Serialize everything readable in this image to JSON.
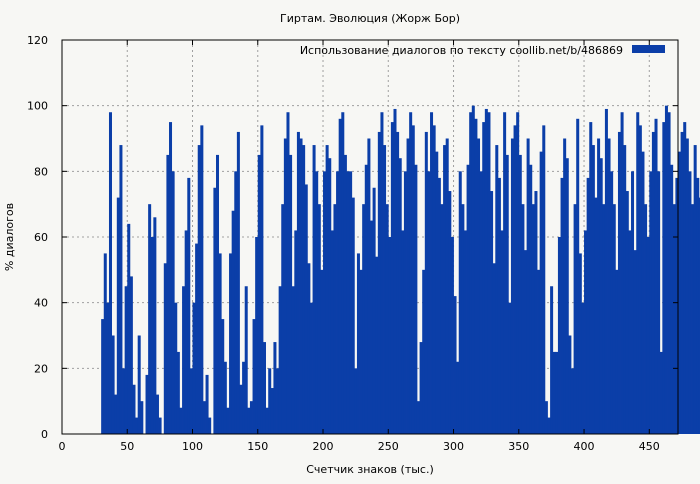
{
  "chart_data": {
    "type": "bar",
    "title": "Гиртам. Эволюция (Жорж Бор)",
    "xlabel": "Счетчик знаков (тыс.)",
    "ylabel": "% диалогов",
    "xlim": [
      0,
      472
    ],
    "ylim": [
      0,
      120
    ],
    "xticks": [
      "0",
      "50",
      "100",
      "150",
      "200",
      "250",
      "300",
      "350",
      "400",
      "450"
    ],
    "xtick_values": [
      0,
      50,
      100,
      150,
      200,
      250,
      300,
      350,
      400,
      450
    ],
    "yticks": [
      "0",
      "20",
      "40",
      "60",
      "80",
      "100",
      "120"
    ],
    "ytick_values": [
      0,
      20,
      40,
      60,
      80,
      100,
      120
    ],
    "grid": true,
    "legend_position": "top-right",
    "series": [
      {
        "name": "Использование диалогов по тексту  coollib.net/b/486869",
        "color": "#0b3ea8",
        "x_start": 30,
        "x_step": 2,
        "values": [
          35,
          55,
          40,
          98,
          30,
          12,
          72,
          88,
          20,
          45,
          64,
          48,
          15,
          5,
          30,
          10,
          0,
          18,
          70,
          60,
          66,
          12,
          5,
          0,
          52,
          85,
          95,
          80,
          40,
          25,
          8,
          45,
          62,
          78,
          20,
          40,
          58,
          88,
          94,
          10,
          18,
          5,
          0,
          75,
          85,
          55,
          35,
          22,
          8,
          55,
          68,
          80,
          92,
          15,
          22,
          45,
          8,
          10,
          35,
          60,
          85,
          94,
          28,
          8,
          20,
          14,
          28,
          20,
          45,
          70,
          90,
          98,
          85,
          45,
          62,
          92,
          90,
          88,
          76,
          52,
          40,
          88,
          80,
          70,
          50,
          80,
          88,
          84,
          62,
          70,
          80,
          96,
          98,
          85,
          80,
          80,
          72,
          20,
          55,
          50,
          70,
          82,
          90,
          65,
          75,
          54,
          92,
          98,
          88,
          70,
          60,
          95,
          99,
          92,
          84,
          62,
          80,
          90,
          98,
          94,
          82,
          10,
          28,
          50,
          92,
          80,
          98,
          94,
          86,
          78,
          70,
          88,
          90,
          74,
          60,
          42,
          22,
          80,
          70,
          62,
          82,
          98,
          100,
          96,
          90,
          80,
          95,
          99,
          98,
          74,
          52,
          88,
          78,
          62,
          98,
          85,
          40,
          90,
          94,
          98,
          85,
          70,
          56,
          90,
          82,
          70,
          74,
          50,
          86,
          94,
          10,
          5,
          45,
          25,
          25,
          60,
          78,
          90,
          84,
          30,
          20,
          70,
          96,
          55,
          40,
          62,
          78,
          95,
          88,
          72,
          90,
          84,
          70,
          99,
          90,
          80,
          70,
          50,
          92,
          98,
          88,
          74,
          62,
          80,
          56,
          98,
          94,
          86,
          70,
          60,
          80,
          92,
          96,
          80,
          25,
          95,
          100,
          98,
          82,
          70,
          78,
          86,
          92,
          95,
          90,
          80,
          70,
          88,
          78,
          72
        ]
      }
    ]
  }
}
